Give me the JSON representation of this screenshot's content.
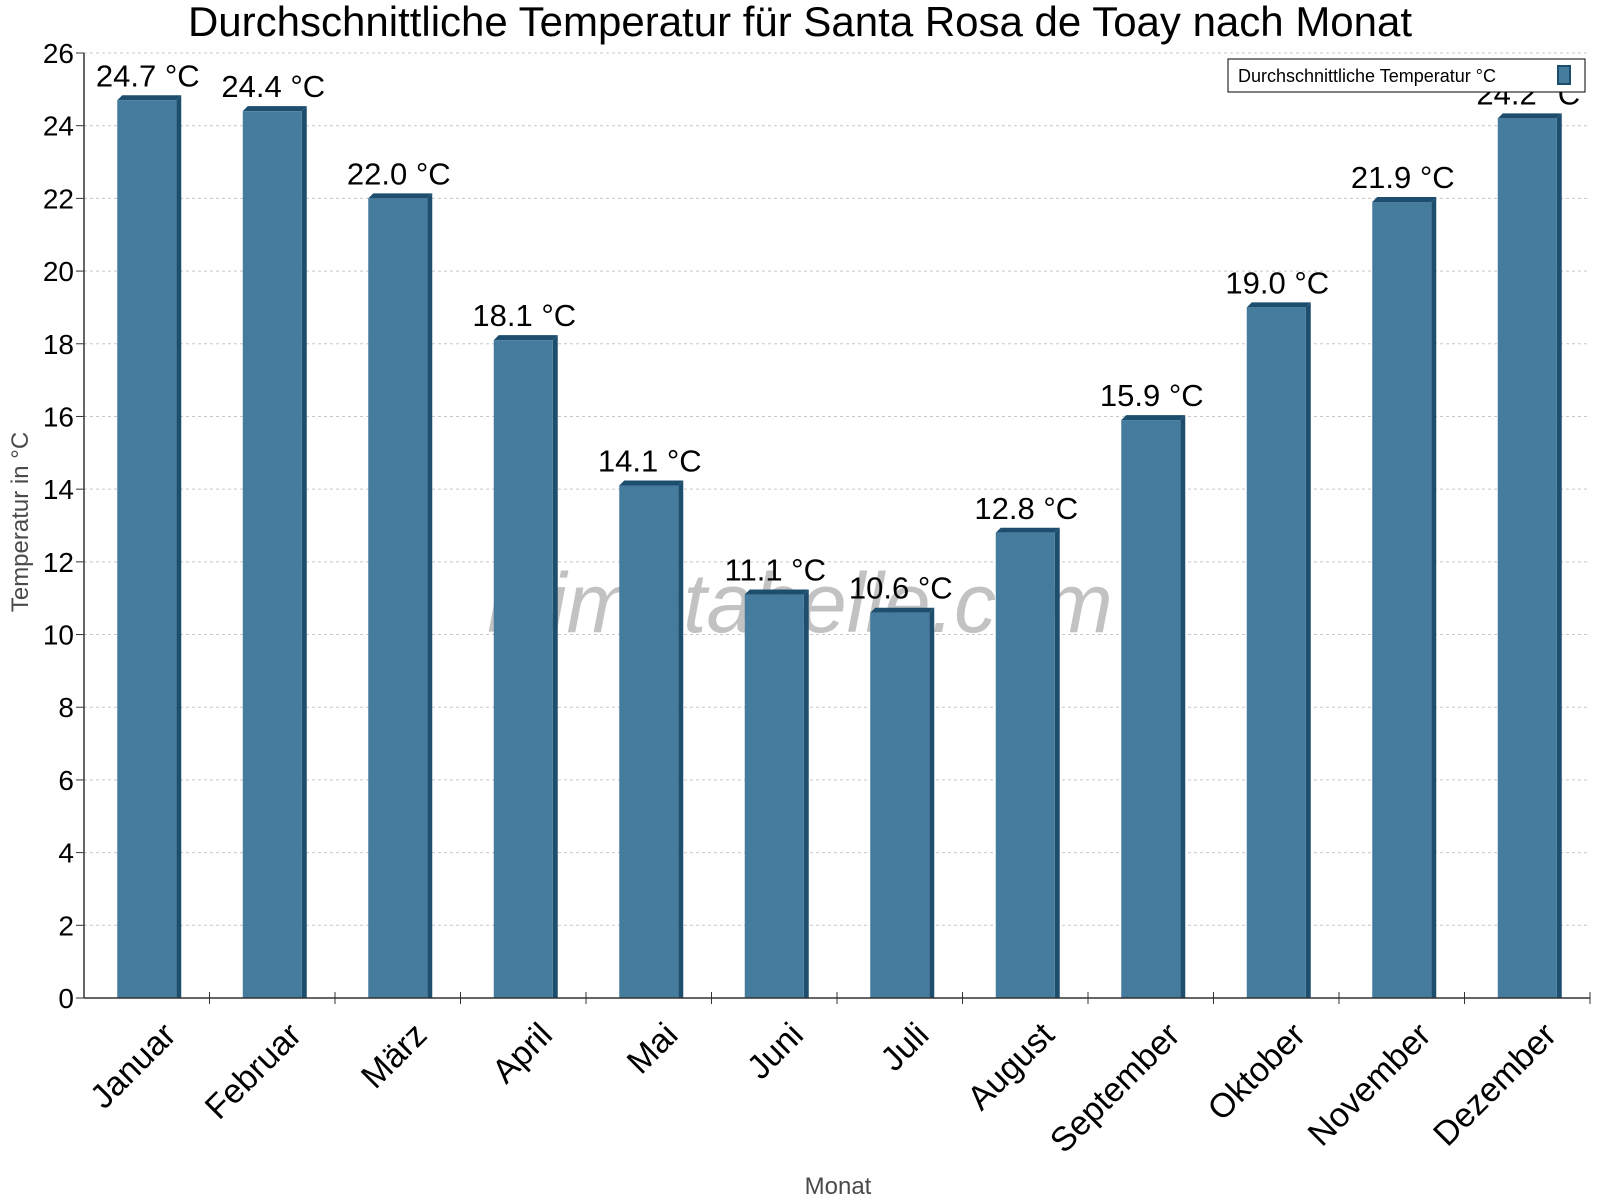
{
  "chart_data": {
    "type": "bar",
    "title": "Durchschnittliche Temperatur für Santa Rosa de Toay nach Monat",
    "xlabel": "Monat",
    "ylabel": "Temperatur in °C",
    "categories": [
      "Januar",
      "Februar",
      "März",
      "April",
      "Mai",
      "Juni",
      "Juli",
      "August",
      "September",
      "Oktober",
      "November",
      "Dezember"
    ],
    "series": [
      {
        "name": "Durchschnittliche Temperatur °C",
        "values": [
          24.7,
          24.4,
          22.0,
          18.1,
          14.1,
          11.1,
          10.6,
          12.8,
          15.9,
          19.0,
          21.9,
          24.2
        ],
        "labels": [
          "24.7 °C",
          "24.4 °C",
          "22.0 °C",
          "18.1 °C",
          "14.1 °C",
          "11.1 °C",
          "10.6 °C",
          "12.8 °C",
          "15.9 °C",
          "19.0 °C",
          "21.9 °C",
          "24.2 °C"
        ]
      }
    ],
    "ylim": [
      0,
      26
    ],
    "yticks": [
      0,
      2,
      4,
      6,
      8,
      10,
      12,
      14,
      16,
      18,
      20,
      22,
      24,
      26
    ],
    "grid": true,
    "legend_position": "top-right",
    "bar_color": "#457b9d",
    "bar_side_color": "#1d4e6e"
  },
  "watermark": "klimatabelle.com"
}
